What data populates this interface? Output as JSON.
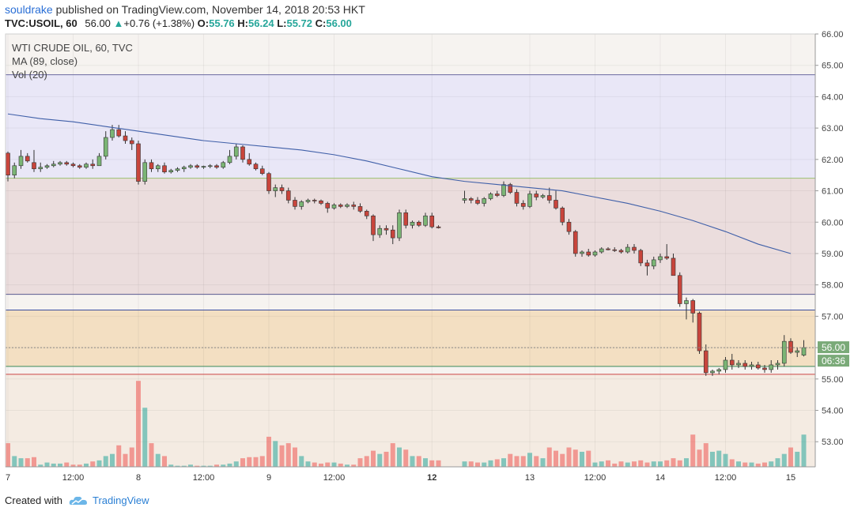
{
  "header": {
    "publisher": "souldrake",
    "published_text": "published on TradingView.com, November 14, 2018 20:53 HKT",
    "symbol": "TVC:USOIL, 60",
    "last": "56.00",
    "change": "+0.76 (+1.38%)",
    "open_label": "O:",
    "open": "55.76",
    "high_label": "H:",
    "high": "56.24",
    "low_label": "L:",
    "low": "55.72",
    "close_label": "C:",
    "close": "56.00"
  },
  "legend": {
    "title": "WTI CRUDE OIL, 60, TVC",
    "ma": "MA (89, close)",
    "vol": "Vol (20)"
  },
  "price_badge": {
    "price": "56.00",
    "countdown": "06:36"
  },
  "footer": {
    "created_with": "Created with",
    "brand": "TradingView"
  },
  "colors": {
    "up": "#26a69a",
    "down": "#ef5350",
    "ma": "#3f5fa8",
    "zone_top": "#e9e7f7",
    "zone_mid": "#ebdddd",
    "zone_low": "#f3dfc2",
    "zone_vol": "#f4ebe2"
  },
  "chart_data": {
    "type": "candlestick",
    "y_axis_ticks": [
      "66.00",
      "65.00",
      "64.00",
      "63.00",
      "62.00",
      "61.00",
      "60.00",
      "59.00",
      "58.00",
      "57.00",
      "56.00",
      "55.00",
      "54.00",
      "53.00"
    ],
    "ylim": [
      52.2,
      66.0
    ],
    "x_axis_ticks": [
      {
        "label": "7",
        "x": 0,
        "bold": false
      },
      {
        "label": "12:00",
        "x": 10,
        "bold": false
      },
      {
        "label": "8",
        "x": 20,
        "bold": false
      },
      {
        "label": "12:00",
        "x": 30,
        "bold": false
      },
      {
        "label": "9",
        "x": 40,
        "bold": false
      },
      {
        "label": "12:00",
        "x": 50,
        "bold": false
      },
      {
        "label": "12",
        "x": 65,
        "bold": true
      },
      {
        "label": "13",
        "x": 80,
        "bold": false
      },
      {
        "label": "12:00",
        "x": 90,
        "bold": false
      },
      {
        "label": "14",
        "x": 100,
        "bold": false
      },
      {
        "label": "12:00",
        "x": 110,
        "bold": false
      },
      {
        "label": "15",
        "x": 120,
        "bold": false
      }
    ],
    "horizontal_lines": [
      {
        "price": 64.7,
        "color": "#6a6aa0"
      },
      {
        "price": 61.4,
        "color": "#9ac070"
      },
      {
        "price": 57.7,
        "color": "#5a5a90"
      },
      {
        "price": 57.2,
        "color": "#3a4fa0"
      },
      {
        "price": 55.4,
        "color": "#3a8a5a"
      },
      {
        "price": 55.15,
        "color": "#cc4444"
      }
    ],
    "zones": [
      {
        "from": 61.4,
        "to": 64.7,
        "color": "#e9e7f7"
      },
      {
        "from": 57.7,
        "to": 61.4,
        "color": "#ebdddd"
      },
      {
        "from": 55.4,
        "to": 57.2,
        "color": "#f3dfc2"
      }
    ],
    "last_price": 56.0,
    "ohlc": [
      [
        62.2,
        62.25,
        61.3,
        61.5
      ],
      [
        61.5,
        61.9,
        61.4,
        61.8
      ],
      [
        61.8,
        62.3,
        61.7,
        62.1
      ],
      [
        62.1,
        62.2,
        61.9,
        61.95
      ],
      [
        61.9,
        62.3,
        61.6,
        61.7
      ],
      [
        61.7,
        61.9,
        61.6,
        61.75
      ],
      [
        61.75,
        61.85,
        61.7,
        61.8
      ],
      [
        61.8,
        61.95,
        61.75,
        61.85
      ],
      [
        61.85,
        61.95,
        61.8,
        61.9
      ],
      [
        61.9,
        61.95,
        61.8,
        61.85
      ],
      [
        61.85,
        61.9,
        61.75,
        61.8
      ],
      [
        61.8,
        61.85,
        61.7,
        61.75
      ],
      [
        61.75,
        61.9,
        61.7,
        61.85
      ],
      [
        61.85,
        62.0,
        61.7,
        61.8
      ],
      [
        61.8,
        62.2,
        61.8,
        62.1
      ],
      [
        62.1,
        62.9,
        62.0,
        62.7
      ],
      [
        62.7,
        63.1,
        62.6,
        62.95
      ],
      [
        62.95,
        63.1,
        62.7,
        62.75
      ],
      [
        62.75,
        62.9,
        62.5,
        62.6
      ],
      [
        62.6,
        62.7,
        62.3,
        62.5
      ],
      [
        62.5,
        62.6,
        61.2,
        61.3
      ],
      [
        61.3,
        62.0,
        61.2,
        61.9
      ],
      [
        61.9,
        62.0,
        61.6,
        61.7
      ],
      [
        61.7,
        61.85,
        61.6,
        61.8
      ],
      [
        61.8,
        61.9,
        61.55,
        61.6
      ],
      [
        61.6,
        61.7,
        61.55,
        61.65
      ],
      [
        61.65,
        61.75,
        61.6,
        61.7
      ],
      [
        61.7,
        61.8,
        61.6,
        61.75
      ],
      [
        61.75,
        61.85,
        61.7,
        61.8
      ],
      [
        61.8,
        61.85,
        61.7,
        61.75
      ],
      [
        61.75,
        61.8,
        61.7,
        61.78
      ],
      [
        61.78,
        61.85,
        61.72,
        61.8
      ],
      [
        61.8,
        61.85,
        61.7,
        61.75
      ],
      [
        61.75,
        61.95,
        61.7,
        61.9
      ],
      [
        61.9,
        62.3,
        61.85,
        62.1
      ],
      [
        62.1,
        62.5,
        62.0,
        62.4
      ],
      [
        62.4,
        62.45,
        61.9,
        62.0
      ],
      [
        62.0,
        62.2,
        61.8,
        61.85
      ],
      [
        61.85,
        61.9,
        61.65,
        61.7
      ],
      [
        61.7,
        61.8,
        61.5,
        61.55
      ],
      [
        61.55,
        61.6,
        60.9,
        61.0
      ],
      [
        61.0,
        61.2,
        60.8,
        61.1
      ],
      [
        61.1,
        61.2,
        60.9,
        61.0
      ],
      [
        61.0,
        61.1,
        60.6,
        60.7
      ],
      [
        60.7,
        60.8,
        60.4,
        60.5
      ],
      [
        60.5,
        60.7,
        60.4,
        60.65
      ],
      [
        60.65,
        60.75,
        60.6,
        60.7
      ],
      [
        60.7,
        60.75,
        60.6,
        60.68
      ],
      [
        60.68,
        60.72,
        60.55,
        60.6
      ],
      [
        60.6,
        60.65,
        60.3,
        60.45
      ],
      [
        60.45,
        60.6,
        60.4,
        60.55
      ],
      [
        60.55,
        60.6,
        60.45,
        60.5
      ],
      [
        60.5,
        60.6,
        60.45,
        60.55
      ],
      [
        60.55,
        60.65,
        60.4,
        60.5
      ],
      [
        60.5,
        60.6,
        60.3,
        60.35
      ],
      [
        60.35,
        60.4,
        60.1,
        60.2
      ],
      [
        60.2,
        60.25,
        59.4,
        59.6
      ],
      [
        59.6,
        59.9,
        59.5,
        59.8
      ],
      [
        59.8,
        59.9,
        59.6,
        59.75
      ],
      [
        59.75,
        59.9,
        59.3,
        59.5
      ],
      [
        59.5,
        60.4,
        59.4,
        60.3
      ],
      [
        60.3,
        60.4,
        59.8,
        59.9
      ],
      [
        59.9,
        60.05,
        59.8,
        60.0
      ],
      [
        60.0,
        60.05,
        59.85,
        59.9
      ],
      [
        59.9,
        60.3,
        59.85,
        60.2
      ],
      [
        60.2,
        60.3,
        59.8,
        59.85
      ],
      [
        59.85,
        59.9,
        59.8,
        59.82
      ],
      [
        null,
        null,
        null,
        null
      ],
      [
        null,
        null,
        null,
        null
      ],
      [
        null,
        null,
        null,
        null
      ],
      [
        60.7,
        61.0,
        60.6,
        60.75
      ],
      [
        60.75,
        60.8,
        60.6,
        60.7
      ],
      [
        60.7,
        60.8,
        60.55,
        60.6
      ],
      [
        60.6,
        60.8,
        60.5,
        60.75
      ],
      [
        60.75,
        60.95,
        60.7,
        60.9
      ],
      [
        60.9,
        61.0,
        60.8,
        60.85
      ],
      [
        60.85,
        61.3,
        60.8,
        61.2
      ],
      [
        61.2,
        61.25,
        60.9,
        60.95
      ],
      [
        60.95,
        61.05,
        60.5,
        60.6
      ],
      [
        60.6,
        60.7,
        60.4,
        60.5
      ],
      [
        60.5,
        61.0,
        60.45,
        60.9
      ],
      [
        60.9,
        61.0,
        60.7,
        60.8
      ],
      [
        60.8,
        60.9,
        60.75,
        60.85
      ],
      [
        60.85,
        61.1,
        60.6,
        60.7
      ],
      [
        60.7,
        61.0,
        60.4,
        60.45
      ],
      [
        60.45,
        60.5,
        59.9,
        60.0
      ],
      [
        60.0,
        60.1,
        59.6,
        59.7
      ],
      [
        59.7,
        59.75,
        58.9,
        59.0
      ],
      [
        59.0,
        59.1,
        58.9,
        59.05
      ],
      [
        59.05,
        59.15,
        58.9,
        58.95
      ],
      [
        58.95,
        59.1,
        58.9,
        59.05
      ],
      [
        59.05,
        59.2,
        59.0,
        59.15
      ],
      [
        59.15,
        59.2,
        59.1,
        59.12
      ],
      [
        59.12,
        59.2,
        59.05,
        59.1
      ],
      [
        59.1,
        59.15,
        59.0,
        59.05
      ],
      [
        59.05,
        59.3,
        59.0,
        59.2
      ],
      [
        59.2,
        59.3,
        59.0,
        59.1
      ],
      [
        59.1,
        59.15,
        58.6,
        58.7
      ],
      [
        58.7,
        58.8,
        58.3,
        58.6
      ],
      [
        58.6,
        58.9,
        58.5,
        58.8
      ],
      [
        58.8,
        59.0,
        58.7,
        58.9
      ],
      [
        58.9,
        59.3,
        58.8,
        58.85
      ],
      [
        58.85,
        59.0,
        58.3,
        58.3
      ],
      [
        58.3,
        58.4,
        57.3,
        57.4
      ],
      [
        57.4,
        57.6,
        56.9,
        57.5
      ],
      [
        57.5,
        57.55,
        56.8,
        57.1
      ],
      [
        57.1,
        57.15,
        55.8,
        55.9
      ],
      [
        55.9,
        56.1,
        55.1,
        55.2
      ],
      [
        55.2,
        55.3,
        55.1,
        55.25
      ],
      [
        55.25,
        55.35,
        55.15,
        55.3
      ],
      [
        55.3,
        55.7,
        55.2,
        55.6
      ],
      [
        55.6,
        55.8,
        55.3,
        55.45
      ],
      [
        55.45,
        55.6,
        55.35,
        55.5
      ],
      [
        55.5,
        55.6,
        55.3,
        55.4
      ],
      [
        55.4,
        55.55,
        55.3,
        55.45
      ],
      [
        55.45,
        55.55,
        55.3,
        55.35
      ],
      [
        55.35,
        55.45,
        55.2,
        55.3
      ],
      [
        55.3,
        55.6,
        55.2,
        55.45
      ],
      [
        55.45,
        55.6,
        55.3,
        55.5
      ],
      [
        55.5,
        56.4,
        55.4,
        56.2
      ],
      [
        56.2,
        56.3,
        55.8,
        55.85
      ],
      [
        55.85,
        56.0,
        55.7,
        55.9
      ],
      [
        55.76,
        56.24,
        55.72,
        56.0
      ]
    ],
    "ma": [
      [
        0,
        63.45
      ],
      [
        5,
        63.3
      ],
      [
        10,
        63.2
      ],
      [
        15,
        63.05
      ],
      [
        20,
        62.9
      ],
      [
        25,
        62.75
      ],
      [
        30,
        62.6
      ],
      [
        35,
        62.5
      ],
      [
        40,
        62.4
      ],
      [
        45,
        62.3
      ],
      [
        50,
        62.15
      ],
      [
        55,
        61.95
      ],
      [
        60,
        61.7
      ],
      [
        65,
        61.45
      ],
      [
        70,
        61.3
      ],
      [
        75,
        61.2
      ],
      [
        80,
        61.1
      ],
      [
        85,
        61.0
      ],
      [
        90,
        60.8
      ],
      [
        95,
        60.6
      ],
      [
        100,
        60.35
      ],
      [
        105,
        60.05
      ],
      [
        110,
        59.7
      ],
      [
        115,
        59.3
      ],
      [
        120,
        59.0
      ]
    ],
    "volume": [
      0.22,
      0.1,
      0.08,
      0.08,
      0.09,
      0.02,
      0.04,
      0.03,
      0.03,
      0.04,
      0.02,
      0.02,
      0.03,
      0.05,
      0.06,
      0.1,
      0.12,
      0.2,
      0.12,
      0.18,
      0.8,
      0.55,
      0.22,
      0.12,
      0.1,
      0.02,
      0.01,
      0.01,
      0.02,
      0.01,
      0.01,
      0.01,
      0.02,
      0.02,
      0.03,
      0.05,
      0.08,
      0.09,
      0.09,
      0.1,
      0.28,
      0.24,
      0.2,
      0.22,
      0.18,
      0.1,
      0.05,
      0.04,
      0.03,
      0.04,
      0.04,
      0.03,
      0.02,
      0.02,
      0.08,
      0.1,
      0.15,
      0.12,
      0.14,
      0.22,
      0.18,
      0.16,
      0.1,
      0.1,
      0.08,
      0.06,
      0.06,
      0.0,
      0.0,
      0.0,
      0.05,
      0.05,
      0.04,
      0.04,
      0.06,
      0.07,
      0.08,
      0.12,
      0.1,
      0.1,
      0.13,
      0.1,
      0.08,
      0.18,
      0.15,
      0.12,
      0.18,
      0.16,
      0.14,
      0.15,
      0.04,
      0.05,
      0.06,
      0.03,
      0.05,
      0.04,
      0.05,
      0.06,
      0.04,
      0.05,
      0.05,
      0.06,
      0.08,
      0.06,
      0.08,
      0.3,
      0.16,
      0.22,
      0.14,
      0.15,
      0.12,
      0.07,
      0.05,
      0.04,
      0.04,
      0.03,
      0.04,
      0.05,
      0.08,
      0.12
    ],
    "volume_extra": [
      0.18,
      0.14,
      0.3,
      0.12,
      0.14
    ]
  }
}
